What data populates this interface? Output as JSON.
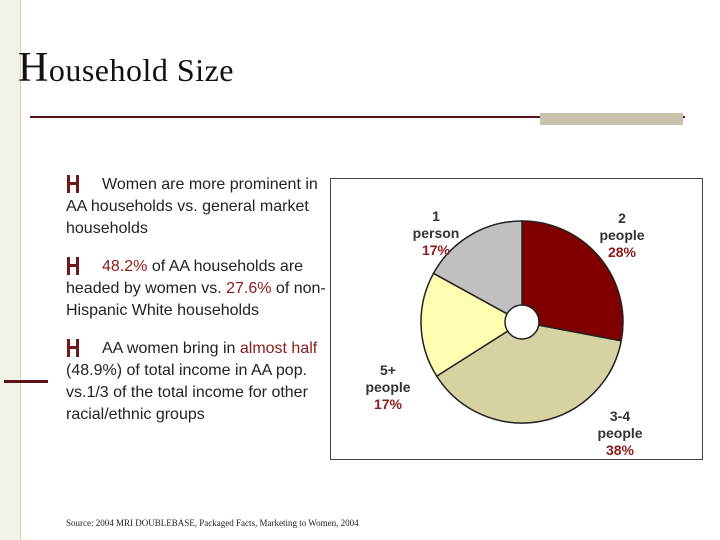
{
  "page": {
    "title_initial": "H",
    "title_rest": "ousehold Size",
    "source": "Source: 2004 MRI DOUBLEBASE, Packaged Facts, Marketing to Women, 2004"
  },
  "bullets": [
    {
      "parts": [
        "Women are more prominent in AA households vs. general market households"
      ]
    },
    {
      "parts": [
        "48.2%",
        " of AA households are headed by women vs. ",
        "27.6%",
        " of non-Hispanic White households"
      ]
    },
    {
      "parts": [
        "AA women bring in ",
        "almost half",
        " (48.9%) of total income in AA pop. vs.1/3 of the total income for other racial/ethnic groups"
      ]
    }
  ],
  "colors": {
    "accent": "#8b1a1a",
    "rule": "#5a1418",
    "slice_2": "#800000",
    "slice_34": "#d6d2a2",
    "slice_5": "#fefdb0",
    "slice_1": "#c0c0c0"
  },
  "chart_data": {
    "type": "pie",
    "donut_hole": true,
    "start": "12 o'clock, clockwise",
    "slices": [
      {
        "label": "2\npeople",
        "value": 28,
        "pct_text": "28%",
        "color": "#800000"
      },
      {
        "label": "3-4\npeople",
        "value": 38,
        "pct_text": "38%",
        "color": "#d6d2a2"
      },
      {
        "label": "5+\npeople",
        "value": 17,
        "pct_text": "17%",
        "color": "#fefdb0"
      },
      {
        "label": "1\nperson",
        "value": 17,
        "pct_text": "17%",
        "color": "#c0c0c0"
      }
    ]
  }
}
